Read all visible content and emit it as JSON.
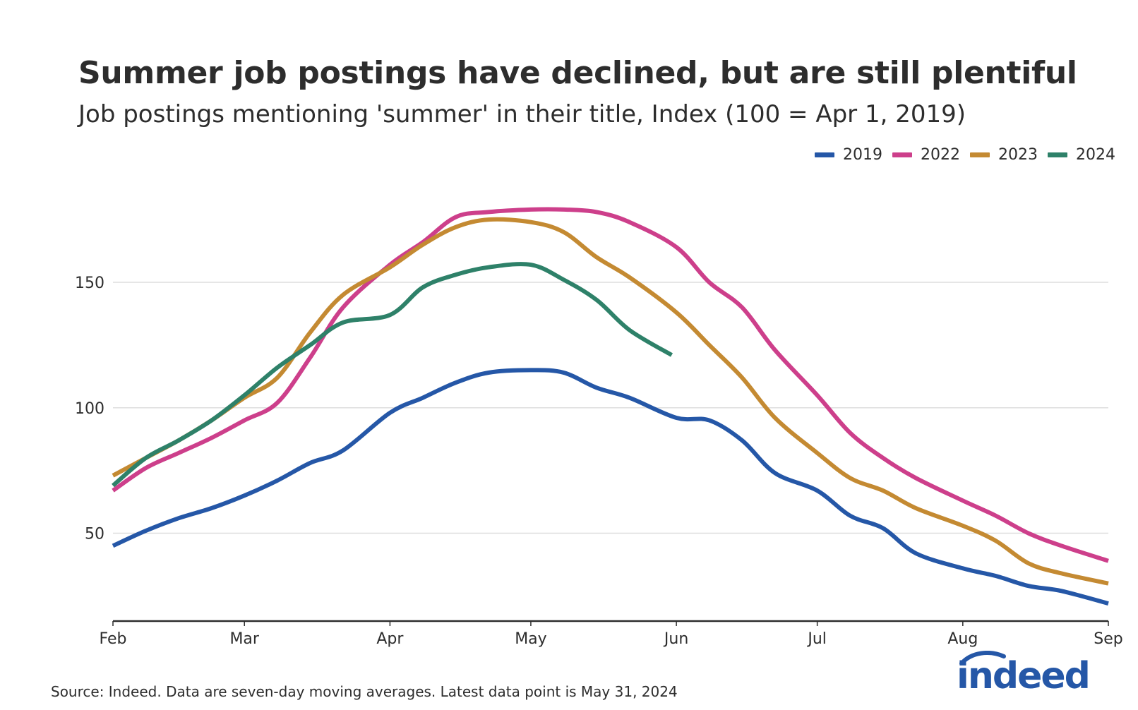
{
  "title": "Summer job postings have declined, but are still plentiful",
  "subtitle": "Job postings mentioning 'summer' in their title, Index (100 = Apr 1, 2019)",
  "source": "Source: Indeed. Data are seven-day moving averages. Latest data point is May 31, 2024",
  "logo_text": "indeed",
  "colors": {
    "2019": "#2557a7",
    "2022": "#cd3f8b",
    "2023": "#c48a32",
    "2024": "#2e8169",
    "grid": "#dedede",
    "axis": "#2d2d2d"
  },
  "chart_data": {
    "type": "line",
    "title": "Summer job postings have declined, but are still plentiful",
    "subtitle": "Job postings mentioning 'summer' in their title, Index (100 = Apr 1, 2019)",
    "xlabel": "",
    "ylabel": "",
    "x_ticks": [
      "Feb",
      "Mar",
      "Apr",
      "May",
      "Jun",
      "Jul",
      "Aug",
      "Sep"
    ],
    "y_ticks": [
      50,
      100,
      150
    ],
    "ylim": [
      15,
      195
    ],
    "xlim": [
      "Feb 1",
      "Sep 1"
    ],
    "grid": "horizontal",
    "legend_position": "top-right",
    "series": [
      {
        "name": "2019",
        "x": [
          "Feb 1",
          "Feb 8",
          "Feb 15",
          "Feb 22",
          "Mar 1",
          "Mar 8",
          "Mar 15",
          "Mar 22",
          "Apr 1",
          "Apr 8",
          "Apr 15",
          "Apr 22",
          "May 1",
          "May 8",
          "May 15",
          "May 22",
          "Jun 1",
          "Jun 8",
          "Jun 15",
          "Jun 22",
          "Jul 1",
          "Jul 8",
          "Jul 15",
          "Jul 22",
          "Aug 1",
          "Aug 8",
          "Aug 15",
          "Aug 22",
          "Sep 1"
        ],
        "values": [
          45,
          51,
          56,
          60,
          65,
          71,
          78,
          83,
          98,
          104,
          110,
          114,
          115,
          114,
          108,
          104,
          96,
          95,
          87,
          74,
          67,
          57,
          52,
          42,
          36,
          33,
          29,
          27,
          22
        ]
      },
      {
        "name": "2022",
        "x": [
          "Feb 1",
          "Feb 8",
          "Feb 15",
          "Feb 22",
          "Mar 1",
          "Mar 8",
          "Mar 15",
          "Mar 22",
          "Apr 1",
          "Apr 8",
          "Apr 15",
          "Apr 22",
          "May 1",
          "May 8",
          "May 15",
          "May 22",
          "Jun 1",
          "Jun 8",
          "Jun 15",
          "Jun 22",
          "Jul 1",
          "Jul 8",
          "Jul 15",
          "Jul 22",
          "Aug 1",
          "Aug 8",
          "Aug 15",
          "Aug 22",
          "Sep 1"
        ],
        "values": [
          67,
          76,
          82,
          88,
          95,
          102,
          120,
          140,
          157,
          166,
          176,
          178,
          179,
          179,
          178,
          174,
          164,
          150,
          140,
          123,
          105,
          90,
          80,
          72,
          63,
          57,
          50,
          45,
          39
        ]
      },
      {
        "name": "2023",
        "x": [
          "Feb 1",
          "Feb 8",
          "Feb 15",
          "Feb 22",
          "Mar 1",
          "Mar 8",
          "Mar 15",
          "Mar 22",
          "Apr 1",
          "Apr 8",
          "Apr 15",
          "Apr 22",
          "May 1",
          "May 8",
          "May 15",
          "May 22",
          "Jun 1",
          "Jun 8",
          "Jun 15",
          "Jun 22",
          "Jul 1",
          "Jul 8",
          "Jul 15",
          "Jul 22",
          "Aug 1",
          "Aug 8",
          "Aug 15",
          "Aug 22",
          "Sep 1"
        ],
        "values": [
          73,
          80,
          87,
          95,
          104,
          112,
          130,
          145,
          156,
          165,
          172,
          175,
          174,
          170,
          160,
          152,
          138,
          125,
          112,
          96,
          82,
          72,
          67,
          60,
          53,
          47,
          38,
          34,
          30
        ]
      },
      {
        "name": "2024",
        "x": [
          "Feb 1",
          "Feb 8",
          "Feb 15",
          "Feb 22",
          "Mar 1",
          "Mar 8",
          "Mar 15",
          "Mar 22",
          "Apr 1",
          "Apr 8",
          "Apr 15",
          "Apr 22",
          "May 1",
          "May 8",
          "May 15",
          "May 22",
          "May 31"
        ],
        "values": [
          69,
          80,
          87,
          95,
          105,
          116,
          125,
          134,
          137,
          148,
          153,
          156,
          157,
          151,
          143,
          131,
          121
        ]
      }
    ]
  }
}
